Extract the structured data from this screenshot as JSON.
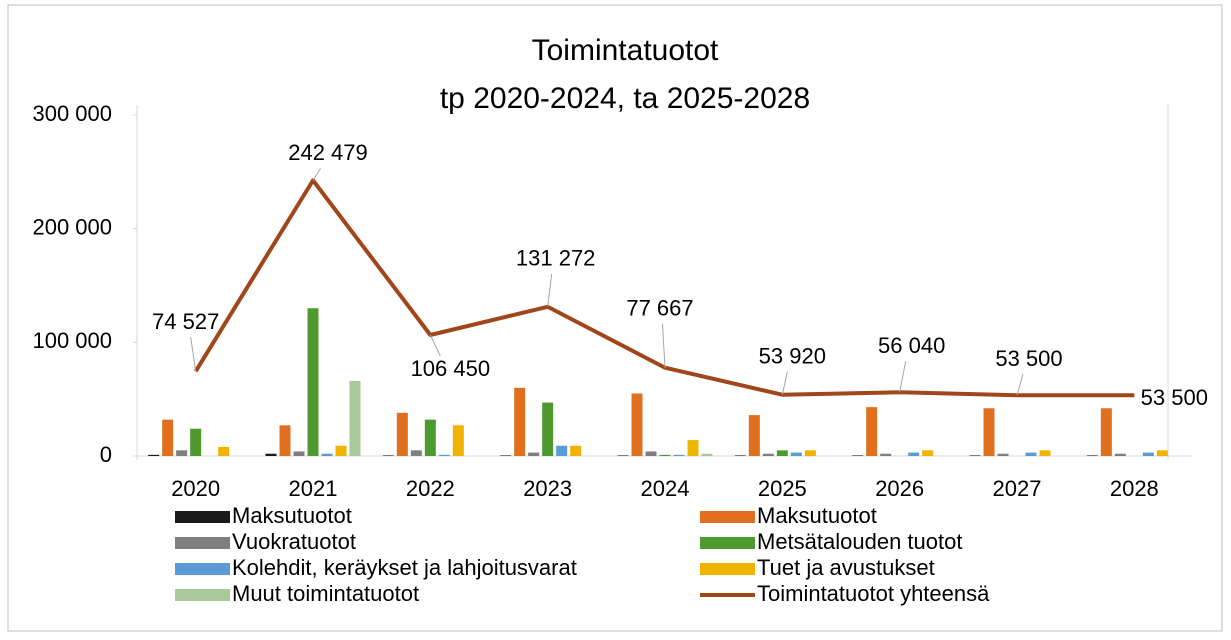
{
  "chart_data": {
    "type": "bar_line",
    "title": "Toimintatuotot",
    "subtitle": "tp 2020-2024, ta 2025-2028",
    "categories": [
      "2020",
      "2021",
      "2022",
      "2023",
      "2024",
      "2025",
      "2026",
      "2027",
      "2028"
    ],
    "ylim": [
      0,
      300000
    ],
    "yticks": [
      0,
      {
        "value": 100000,
        "label": "100 000"
      },
      {
        "value": 200000,
        "label": "200 000"
      },
      {
        "value": 300000,
        "label": "300 000"
      }
    ],
    "series": [
      {
        "name": "Maksutuotot",
        "color": "#1a1a1a",
        "type": "bar",
        "values": [
          1000,
          2000,
          500,
          500,
          500,
          500,
          500,
          500,
          500
        ]
      },
      {
        "name": "Maksutuotot",
        "color": "#e07020",
        "type": "bar",
        "values": [
          32000,
          27000,
          38000,
          60000,
          55000,
          36000,
          43000,
          42000,
          42000
        ]
      },
      {
        "name": "Vuokratuotot",
        "color": "#7f7f7f",
        "type": "bar",
        "values": [
          5000,
          4000,
          5000,
          3000,
          4000,
          2000,
          2000,
          2000,
          2000
        ]
      },
      {
        "name": "Metsätalouden tuotot",
        "color": "#4e9a2e",
        "type": "bar",
        "values": [
          24000,
          130000,
          32000,
          47000,
          1000,
          5000,
          0,
          0,
          0
        ]
      },
      {
        "name": "Kolehdit, keräykset ja lahjoitusvarat",
        "color": "#5b9bd5",
        "type": "bar",
        "values": [
          0,
          2000,
          1000,
          9000,
          1000,
          3000,
          3000,
          3000,
          3000
        ]
      },
      {
        "name": "Tuet ja avustukset",
        "color": "#f0b400",
        "type": "bar",
        "values": [
          8000,
          9000,
          27000,
          9000,
          14000,
          5000,
          5000,
          5000,
          5000
        ]
      },
      {
        "name": "Muut toimintatuotot",
        "color": "#a9c99a",
        "type": "bar",
        "values": [
          0,
          66000,
          0,
          0,
          2000,
          0,
          0,
          0,
          0
        ]
      },
      {
        "name": "Toimintatuotot yhteensä",
        "color": "#a0461a",
        "type": "line",
        "values": [
          74527,
          242479,
          106450,
          131272,
          77667,
          53920,
          56040,
          53500,
          53500
        ],
        "value_labels": [
          "74 527",
          "242 479",
          "106 450",
          "131 272",
          "77 667",
          "53 920",
          "56 040",
          "53 500",
          "53 500"
        ]
      }
    ]
  }
}
